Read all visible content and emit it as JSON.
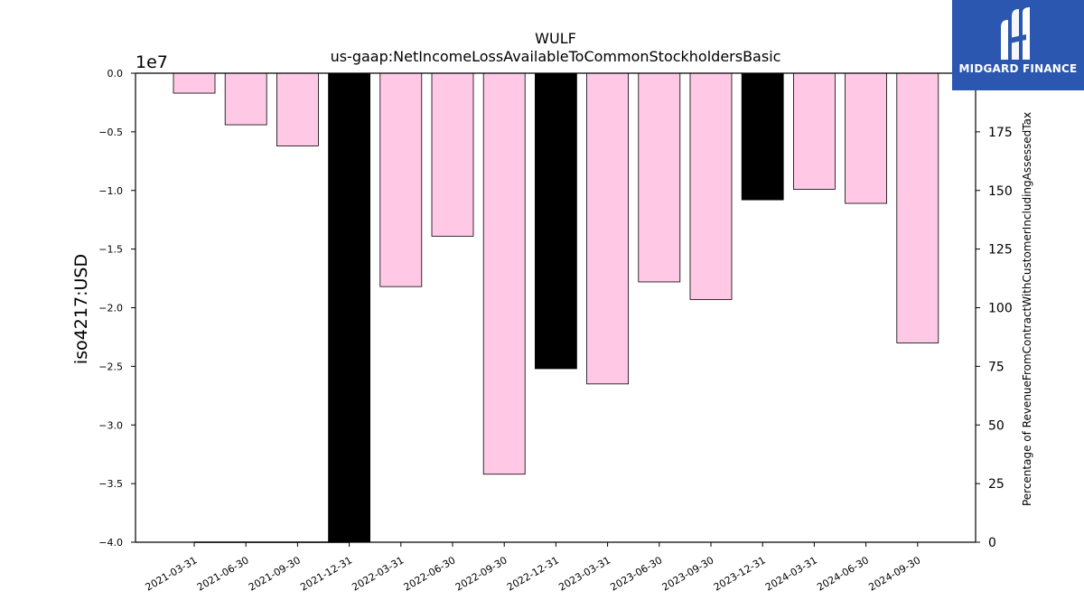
{
  "logo": {
    "text": "MIDGARD FINANCE",
    "icon": "midgard-logo-icon",
    "color": "#2b57b0"
  },
  "chart_data": {
    "type": "bar",
    "title": "WULF",
    "subtitle": "us-gaap:NetIncomeLossAvailableToCommonStockholdersBasic",
    "ylabel": "iso4217:USD",
    "y2label": "Percentage of RevenueFromContractWithCustomerIncludingAssessedTax",
    "y_offset_label": "1e7",
    "ylim": [
      -40000000,
      0
    ],
    "y2lim": [
      0,
      200
    ],
    "yticks": [
      "0.0",
      "−0.5",
      "−1.0",
      "−1.5",
      "−2.0",
      "−2.5",
      "−3.0",
      "−3.5",
      "−4.0"
    ],
    "ytick_values": [
      0,
      -5000000,
      -10000000,
      -15000000,
      -20000000,
      -25000000,
      -30000000,
      -35000000,
      -40000000
    ],
    "y2ticks": [
      "0",
      "25",
      "50",
      "75",
      "100",
      "125",
      "150",
      "175"
    ],
    "y2tick_values": [
      0,
      25,
      50,
      75,
      100,
      125,
      150,
      175
    ],
    "categories": [
      "2021-03-31",
      "2021-06-30",
      "2021-09-30",
      "2021-12-31",
      "2022-03-31",
      "2022-06-30",
      "2022-09-30",
      "2022-12-31",
      "2023-03-31",
      "2023-06-30",
      "2023-09-30",
      "2023-12-31",
      "2024-03-31",
      "2024-06-30",
      "2024-09-30"
    ],
    "values": [
      -1700000,
      -4400000,
      -6200000,
      -40000000,
      -18200000,
      -13900000,
      -34200000,
      -25200000,
      -26500000,
      -17800000,
      -19300000,
      -10800000,
      -9900000,
      -11100000,
      -23000000
    ],
    "bar_colors": [
      "#ffc9e5",
      "#ffc9e5",
      "#ffc9e5",
      "#000000",
      "#ffc9e5",
      "#ffc9e5",
      "#ffc9e5",
      "#000000",
      "#ffc9e5",
      "#ffc9e5",
      "#ffc9e5",
      "#000000",
      "#ffc9e5",
      "#ffc9e5",
      "#ffc9e5"
    ],
    "secondary_line_values": [
      0,
      0,
      0,
      0
    ],
    "grid": false,
    "colors": {
      "positive_bar": "#ffc9e5",
      "highlight_bar": "#000000",
      "edge": "#000000"
    }
  }
}
